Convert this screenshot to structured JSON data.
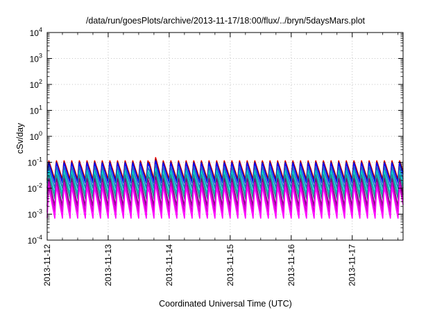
{
  "chart_data": {
    "type": "line",
    "title": "/data/run/goesPlots/archive/2013-11-17/18:00/flux/../bryn/5daysMars.plot",
    "xlabel": "Coordinated Universal Time (UTC)",
    "ylabel": "cSv/day",
    "yscale": "log",
    "ylim": [
      0.0001,
      10000
    ],
    "y_ticks": [
      {
        "base": "10",
        "exp": "4"
      },
      {
        "base": "10",
        "exp": "3"
      },
      {
        "base": "10",
        "exp": "2"
      },
      {
        "base": "10",
        "exp": "1"
      },
      {
        "base": "10",
        "exp": "0"
      },
      {
        "base": "10",
        "exp": "-1"
      },
      {
        "base": "10",
        "exp": "-2"
      },
      {
        "base": "10",
        "exp": "-3"
      },
      {
        "base": "10",
        "exp": "-4"
      }
    ],
    "xlim": [
      "2013-11-12",
      "2013-11-17T20:00"
    ],
    "x_ticks": [
      "2013-11-12",
      "2013-11-13",
      "2013-11-14",
      "2013-11-15",
      "2013-11-16",
      "2013-11-17"
    ],
    "grid": true,
    "legend": "none",
    "period_hours": 3,
    "series": [
      {
        "color": "#ff0000",
        "peak": 0.12,
        "trough": 0.022,
        "spike_peak": 0.16
      },
      {
        "color": "#8b0000",
        "peak": 0.11,
        "trough": 0.02,
        "spike_peak": 0.14
      },
      {
        "color": "#0000ff",
        "peak": 0.1,
        "trough": 0.016,
        "spike_peak": 0.12
      },
      {
        "color": "#1e64c8",
        "peak": 0.07,
        "trough": 0.01,
        "spike_peak": 0.085
      },
      {
        "color": "#00c8c8",
        "peak": 0.05,
        "trough": 0.006,
        "spike_peak": 0.06
      },
      {
        "color": "#1e8c8c",
        "peak": 0.035,
        "trough": 0.004,
        "spike_peak": 0.045
      },
      {
        "color": "#800080",
        "peak": 0.025,
        "trough": 0.002,
        "spike_peak": 0.03
      },
      {
        "color": "#c800c8",
        "peak": 0.018,
        "trough": 0.0012,
        "spike_peak": 0.022
      },
      {
        "color": "#ff00ff",
        "peak": 0.012,
        "trough": 0.0007,
        "spike_peak": 0.015
      }
    ]
  }
}
